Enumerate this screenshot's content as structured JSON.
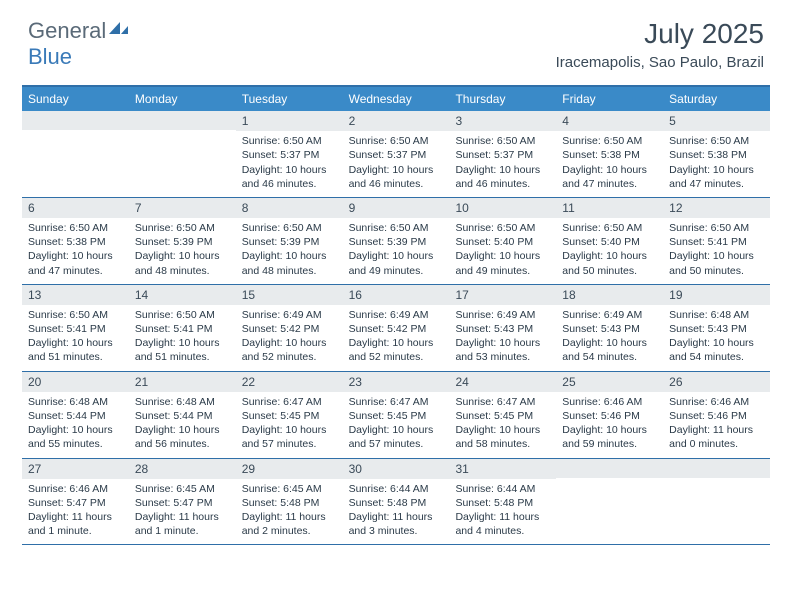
{
  "logo": {
    "word1": "General",
    "word2": "Blue"
  },
  "title": "July 2025",
  "location": "Iracemapolis, Sao Paulo, Brazil",
  "colors": {
    "header_bg": "#3a8ac8",
    "border": "#2f6fa8",
    "daynum_bg": "#e8ebed",
    "text": "#3a4a58",
    "logo_gray": "#5a6a78",
    "logo_blue": "#3a7ab8"
  },
  "days_of_week": [
    "Sunday",
    "Monday",
    "Tuesday",
    "Wednesday",
    "Thursday",
    "Friday",
    "Saturday"
  ],
  "weeks": [
    [
      null,
      null,
      {
        "n": "1",
        "sr": "6:50 AM",
        "ss": "5:37 PM",
        "dl": "10 hours and 46 minutes."
      },
      {
        "n": "2",
        "sr": "6:50 AM",
        "ss": "5:37 PM",
        "dl": "10 hours and 46 minutes."
      },
      {
        "n": "3",
        "sr": "6:50 AM",
        "ss": "5:37 PM",
        "dl": "10 hours and 46 minutes."
      },
      {
        "n": "4",
        "sr": "6:50 AM",
        "ss": "5:38 PM",
        "dl": "10 hours and 47 minutes."
      },
      {
        "n": "5",
        "sr": "6:50 AM",
        "ss": "5:38 PM",
        "dl": "10 hours and 47 minutes."
      }
    ],
    [
      {
        "n": "6",
        "sr": "6:50 AM",
        "ss": "5:38 PM",
        "dl": "10 hours and 47 minutes."
      },
      {
        "n": "7",
        "sr": "6:50 AM",
        "ss": "5:39 PM",
        "dl": "10 hours and 48 minutes."
      },
      {
        "n": "8",
        "sr": "6:50 AM",
        "ss": "5:39 PM",
        "dl": "10 hours and 48 minutes."
      },
      {
        "n": "9",
        "sr": "6:50 AM",
        "ss": "5:39 PM",
        "dl": "10 hours and 49 minutes."
      },
      {
        "n": "10",
        "sr": "6:50 AM",
        "ss": "5:40 PM",
        "dl": "10 hours and 49 minutes."
      },
      {
        "n": "11",
        "sr": "6:50 AM",
        "ss": "5:40 PM",
        "dl": "10 hours and 50 minutes."
      },
      {
        "n": "12",
        "sr": "6:50 AM",
        "ss": "5:41 PM",
        "dl": "10 hours and 50 minutes."
      }
    ],
    [
      {
        "n": "13",
        "sr": "6:50 AM",
        "ss": "5:41 PM",
        "dl": "10 hours and 51 minutes."
      },
      {
        "n": "14",
        "sr": "6:50 AM",
        "ss": "5:41 PM",
        "dl": "10 hours and 51 minutes."
      },
      {
        "n": "15",
        "sr": "6:49 AM",
        "ss": "5:42 PM",
        "dl": "10 hours and 52 minutes."
      },
      {
        "n": "16",
        "sr": "6:49 AM",
        "ss": "5:42 PM",
        "dl": "10 hours and 52 minutes."
      },
      {
        "n": "17",
        "sr": "6:49 AM",
        "ss": "5:43 PM",
        "dl": "10 hours and 53 minutes."
      },
      {
        "n": "18",
        "sr": "6:49 AM",
        "ss": "5:43 PM",
        "dl": "10 hours and 54 minutes."
      },
      {
        "n": "19",
        "sr": "6:48 AM",
        "ss": "5:43 PM",
        "dl": "10 hours and 54 minutes."
      }
    ],
    [
      {
        "n": "20",
        "sr": "6:48 AM",
        "ss": "5:44 PM",
        "dl": "10 hours and 55 minutes."
      },
      {
        "n": "21",
        "sr": "6:48 AM",
        "ss": "5:44 PM",
        "dl": "10 hours and 56 minutes."
      },
      {
        "n": "22",
        "sr": "6:47 AM",
        "ss": "5:45 PM",
        "dl": "10 hours and 57 minutes."
      },
      {
        "n": "23",
        "sr": "6:47 AM",
        "ss": "5:45 PM",
        "dl": "10 hours and 57 minutes."
      },
      {
        "n": "24",
        "sr": "6:47 AM",
        "ss": "5:45 PM",
        "dl": "10 hours and 58 minutes."
      },
      {
        "n": "25",
        "sr": "6:46 AM",
        "ss": "5:46 PM",
        "dl": "10 hours and 59 minutes."
      },
      {
        "n": "26",
        "sr": "6:46 AM",
        "ss": "5:46 PM",
        "dl": "11 hours and 0 minutes."
      }
    ],
    [
      {
        "n": "27",
        "sr": "6:46 AM",
        "ss": "5:47 PM",
        "dl": "11 hours and 1 minute."
      },
      {
        "n": "28",
        "sr": "6:45 AM",
        "ss": "5:47 PM",
        "dl": "11 hours and 1 minute."
      },
      {
        "n": "29",
        "sr": "6:45 AM",
        "ss": "5:48 PM",
        "dl": "11 hours and 2 minutes."
      },
      {
        "n": "30",
        "sr": "6:44 AM",
        "ss": "5:48 PM",
        "dl": "11 hours and 3 minutes."
      },
      {
        "n": "31",
        "sr": "6:44 AM",
        "ss": "5:48 PM",
        "dl": "11 hours and 4 minutes."
      },
      null,
      null
    ]
  ],
  "labels": {
    "sunrise": "Sunrise:",
    "sunset": "Sunset:",
    "daylight": "Daylight:"
  }
}
